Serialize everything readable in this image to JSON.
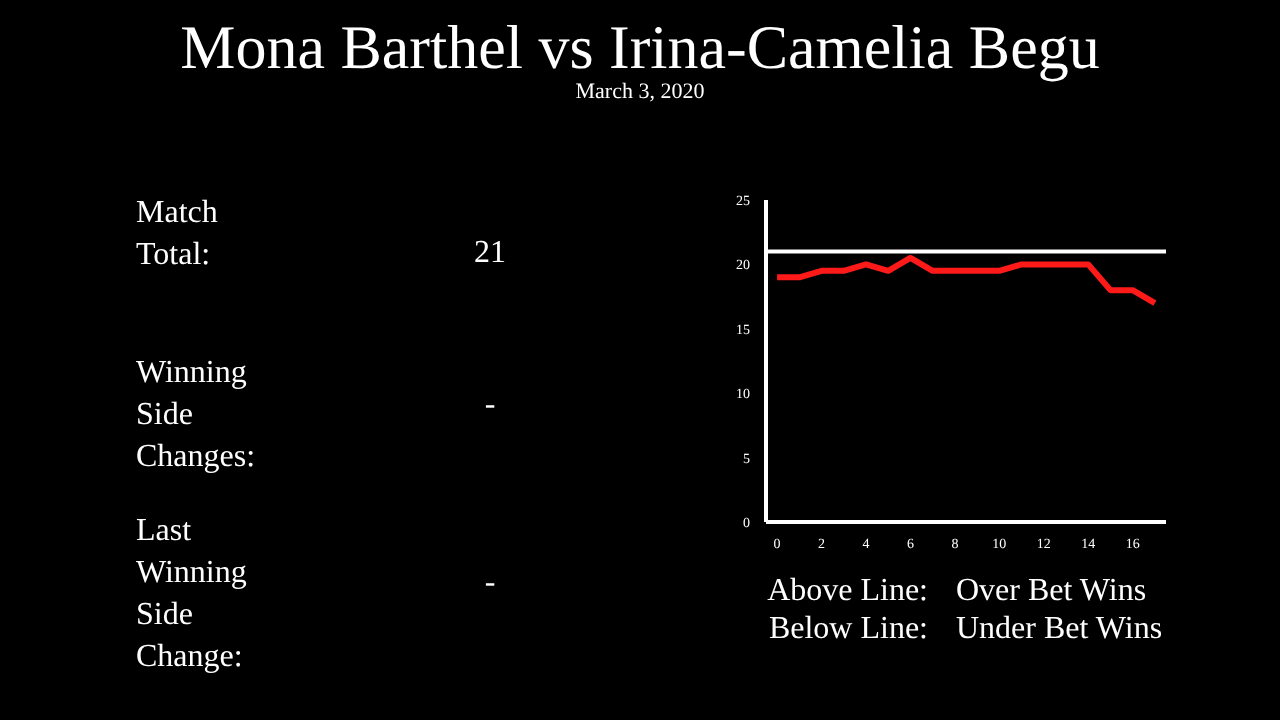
{
  "chart_data": {
    "type": "line",
    "title": "Mona Barthel vs Irina-Camelia Begu",
    "subtitle": "March 3, 2020",
    "x": [
      0,
      1,
      2,
      3,
      4,
      5,
      6,
      7,
      8,
      9,
      10,
      11,
      12,
      13,
      14,
      15,
      16,
      17
    ],
    "series": [
      {
        "color": "#ff1a1a",
        "values": [
          19,
          19,
          19.5,
          19.5,
          20,
          19.5,
          20.5,
          19.5,
          19.5,
          19.5,
          19.5,
          20,
          20,
          20,
          20,
          18,
          18,
          17
        ]
      }
    ],
    "xlim": [
      -0.5,
      17.5
    ],
    "xticks": [
      0,
      2,
      4,
      6,
      8,
      10,
      12,
      14,
      16
    ],
    "ylim": [
      0,
      25
    ],
    "yticks": [
      0,
      5,
      10,
      15,
      20,
      25
    ],
    "ref_lines": [
      {
        "axis": "y",
        "value": 21,
        "color": "#ffffff"
      }
    ],
    "annotations": [
      "Match Total:",
      "21",
      "Winning Side Changes:",
      "-",
      "Last Winning Side Change:",
      "-",
      "Above Line:",
      "Over Bet Wins",
      "Below Line:",
      "Under Bet Wins"
    ]
  }
}
